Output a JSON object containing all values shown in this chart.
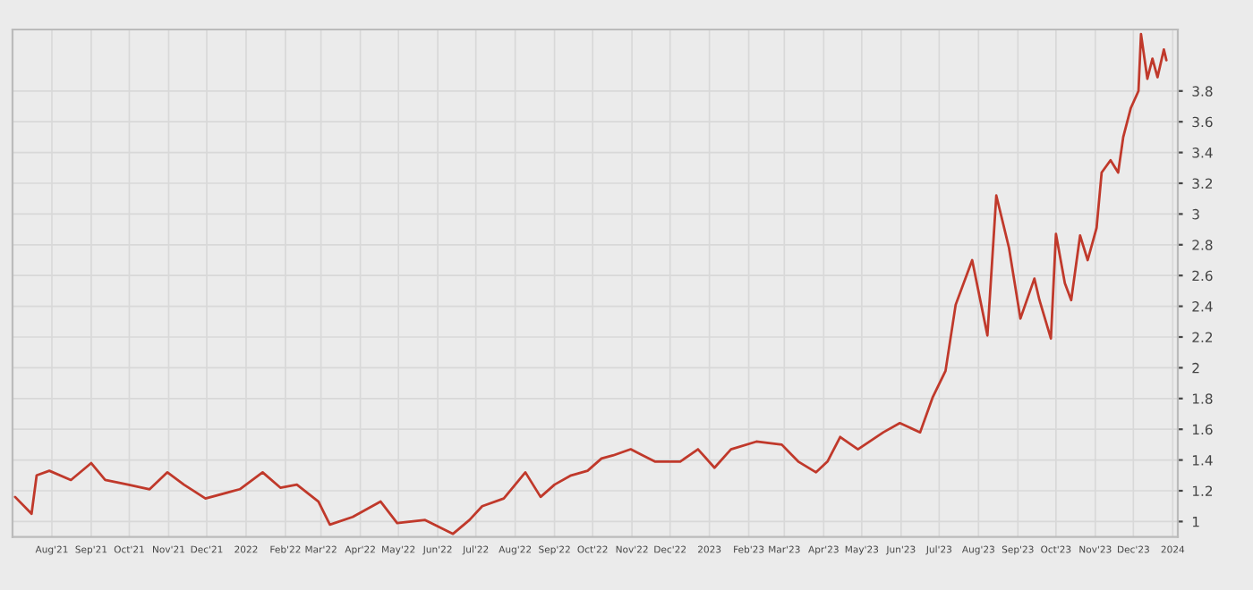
{
  "chart_data": {
    "type": "line",
    "x": [
      "2021-07-03",
      "2021-07-16",
      "2021-07-20",
      "2021-07-30",
      "2021-08-16",
      "2021-09-01",
      "2021-09-12",
      "2021-09-30",
      "2021-10-17",
      "2021-10-31",
      "2021-11-13",
      "2021-11-30",
      "2021-12-27",
      "2022-01-14",
      "2022-01-28",
      "2022-02-10",
      "2022-02-27",
      "2022-03-08",
      "2022-03-26",
      "2022-04-17",
      "2022-04-30",
      "2022-05-22",
      "2022-06-13",
      "2022-06-26",
      "2022-07-06",
      "2022-07-23",
      "2022-08-09",
      "2022-08-21",
      "2022-09-01",
      "2022-09-14",
      "2022-09-27",
      "2022-10-08",
      "2022-10-17",
      "2022-10-31",
      "2022-11-19",
      "2022-12-09",
      "2022-12-23",
      "2023-01-05",
      "2023-01-18",
      "2023-02-07",
      "2023-02-27",
      "2023-03-12",
      "2023-03-26",
      "2023-04-04",
      "2023-04-14",
      "2023-04-28",
      "2023-05-18",
      "2023-05-31",
      "2023-06-16",
      "2023-06-26",
      "2023-07-06",
      "2023-07-14",
      "2023-07-27",
      "2023-08-08",
      "2023-08-15",
      "2023-08-25",
      "2023-09-03",
      "2023-09-14",
      "2023-09-18",
      "2023-09-27",
      "2023-10-01",
      "2023-10-08",
      "2023-10-13",
      "2023-10-20",
      "2023-10-26",
      "2023-11-02",
      "2023-11-06",
      "2023-11-13",
      "2023-11-19",
      "2023-11-23",
      "2023-11-29",
      "2023-12-05",
      "2023-12-07",
      "2023-12-12",
      "2023-12-16",
      "2023-12-20",
      "2023-12-25",
      "2023-12-27"
    ],
    "series": [
      {
        "color": "#c0392b",
        "values": [
          1.16,
          1.05,
          1.3,
          1.33,
          1.27,
          1.38,
          1.27,
          1.24,
          1.21,
          1.32,
          1.24,
          1.15,
          1.21,
          1.32,
          1.22,
          1.24,
          1.13,
          0.98,
          1.03,
          1.13,
          0.99,
          1.01,
          0.92,
          1.01,
          1.1,
          1.15,
          1.32,
          1.16,
          1.24,
          1.3,
          1.33,
          1.41,
          1.43,
          1.47,
          1.39,
          1.39,
          1.47,
          1.35,
          1.47,
          1.52,
          1.5,
          1.39,
          1.32,
          1.39,
          1.55,
          1.47,
          1.58,
          1.64,
          1.58,
          1.81,
          1.98,
          2.41,
          2.7,
          2.21,
          3.12,
          2.78,
          2.32,
          2.58,
          2.44,
          2.19,
          2.87,
          2.55,
          2.44,
          2.86,
          2.7,
          2.91,
          3.27,
          3.35,
          3.27,
          3.5,
          3.69,
          3.8,
          4.17,
          3.88,
          4.01,
          3.89,
          4.07,
          4.0
        ]
      }
    ],
    "xlim": [
      "2021-07-01",
      "2024-01-05"
    ],
    "xticks": [
      {
        "value": "2021-08-01",
        "label": "Aug'21"
      },
      {
        "value": "2021-09-01",
        "label": "Sep'21"
      },
      {
        "value": "2021-10-01",
        "label": "Oct'21"
      },
      {
        "value": "2021-11-01",
        "label": "Nov'21"
      },
      {
        "value": "2021-12-01",
        "label": "Dec'21"
      },
      {
        "value": "2022-01-01",
        "label": "2022"
      },
      {
        "value": "2022-02-01",
        "label": "Feb'22"
      },
      {
        "value": "2022-03-01",
        "label": "Mar'22"
      },
      {
        "value": "2022-04-01",
        "label": "Apr'22"
      },
      {
        "value": "2022-05-01",
        "label": "May'22"
      },
      {
        "value": "2022-06-01",
        "label": "Jun'22"
      },
      {
        "value": "2022-07-01",
        "label": "Jul'22"
      },
      {
        "value": "2022-08-01",
        "label": "Aug'22"
      },
      {
        "value": "2022-09-01",
        "label": "Sep'22"
      },
      {
        "value": "2022-10-01",
        "label": "Oct'22"
      },
      {
        "value": "2022-11-01",
        "label": "Nov'22"
      },
      {
        "value": "2022-12-01",
        "label": "Dec'22"
      },
      {
        "value": "2023-01-01",
        "label": "2023"
      },
      {
        "value": "2023-02-01",
        "label": "Feb'23"
      },
      {
        "value": "2023-03-01",
        "label": "Mar'23"
      },
      {
        "value": "2023-04-01",
        "label": "Apr'23"
      },
      {
        "value": "2023-05-01",
        "label": "May'23"
      },
      {
        "value": "2023-06-01",
        "label": "Jun'23"
      },
      {
        "value": "2023-07-01",
        "label": "Jul'23"
      },
      {
        "value": "2023-08-01",
        "label": "Aug'23"
      },
      {
        "value": "2023-09-01",
        "label": "Sep'23"
      },
      {
        "value": "2023-10-01",
        "label": "Oct'23"
      },
      {
        "value": "2023-11-01",
        "label": "Nov'23"
      },
      {
        "value": "2023-12-01",
        "label": "Dec'23"
      },
      {
        "value": "2024-01-01",
        "label": "2024"
      }
    ],
    "ylim": [
      0.9,
      4.2
    ],
    "yticks": [
      1,
      1.2,
      1.4,
      1.6,
      1.8,
      2,
      2.2,
      2.4,
      2.6,
      2.8,
      3,
      3.2,
      3.4,
      3.6,
      3.8
    ],
    "grid": true,
    "marker": "none",
    "line_style": "solid"
  }
}
